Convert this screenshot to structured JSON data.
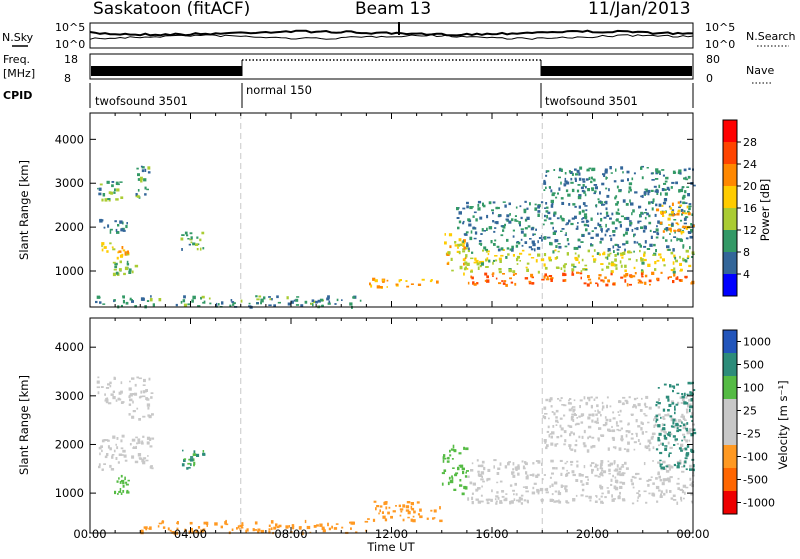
{
  "header": {
    "station": "Saskatoon (fitACF)",
    "beam": "Beam 13",
    "date": "11/Jan/2013"
  },
  "top_panel": {
    "nsky_label": "N.Sky",
    "nsky_ticks": [
      "10^5",
      "10^0"
    ],
    "nsearch_label": "N.Search",
    "nsearch_ticks": [
      "10^5",
      "10^0"
    ],
    "freq_label_1": "Freq.",
    "freq_label_2": "[MHz]",
    "freq_ticks": [
      "18",
      "8"
    ],
    "nave_label": "Nave",
    "nave_ticks": [
      "80",
      "0"
    ],
    "cpid_label": "CPID",
    "cpid_segments": [
      {
        "label": "twofsound 3501",
        "start_hour": 0,
        "end_hour": 6
      },
      {
        "label": "normal 150",
        "start_hour": 6,
        "end_hour": 18
      },
      {
        "label": "twofsound 3501",
        "start_hour": 18,
        "end_hour": 24
      }
    ]
  },
  "chart_data": [
    {
      "type": "heatmap",
      "name": "power",
      "xlabel": "Time UT",
      "ylabel": "Slant Range [km]",
      "xlim": [
        0,
        24
      ],
      "ylim": [
        180,
        4600
      ],
      "yticks": [
        "1000",
        "2000",
        "3000",
        "4000"
      ],
      "colorbar_label": "Power [dB]",
      "colorbar_ticks": [
        "28",
        "24",
        "20",
        "16",
        "12",
        "8",
        "4"
      ],
      "colorbar_colors": [
        "#ff0000",
        "#ff4400",
        "#ff8800",
        "#ffcc00",
        "#aacc33",
        "#339966",
        "#336699",
        "#0000ff"
      ],
      "regions": [
        {
          "x": [
            0.2,
            1.3
          ],
          "y": [
            2600,
            3100
          ],
          "level": 9
        },
        {
          "x": [
            0.3,
            1.5
          ],
          "y": [
            1900,
            2200
          ],
          "level": 6
        },
        {
          "x": [
            0.4,
            1.6
          ],
          "y": [
            1300,
            1700
          ],
          "level": 16
        },
        {
          "x": [
            0.9,
            1.8
          ],
          "y": [
            900,
            1250
          ],
          "level": 10
        },
        {
          "x": [
            1.7,
            2.4
          ],
          "y": [
            2700,
            3400
          ],
          "level": 7
        },
        {
          "x": [
            3.6,
            4.5
          ],
          "y": [
            1500,
            1900
          ],
          "level": 9
        },
        {
          "x": [
            0.2,
            11.0
          ],
          "y": [
            200,
            450
          ],
          "level": 7
        },
        {
          "x": [
            11.0,
            14.0
          ],
          "y": [
            650,
            850
          ],
          "level": 18
        },
        {
          "x": [
            14.0,
            15.0
          ],
          "y": [
            900,
            1900
          ],
          "level": 15
        },
        {
          "x": [
            15.0,
            24.0
          ],
          "y": [
            700,
            1000
          ],
          "level": 22
        },
        {
          "x": [
            15.0,
            24.0
          ],
          "y": [
            1000,
            1500
          ],
          "level": 13
        },
        {
          "x": [
            14.5,
            24.0
          ],
          "y": [
            1500,
            2600
          ],
          "level": 6
        },
        {
          "x": [
            18.0,
            24.0
          ],
          "y": [
            2600,
            3400
          ],
          "level": 6
        },
        {
          "x": [
            22.5,
            24.0
          ],
          "y": [
            1900,
            2600
          ],
          "level": 18
        }
      ],
      "boundary_hours": [
        6,
        18
      ]
    },
    {
      "type": "heatmap",
      "name": "velocity",
      "xlabel": "Time UT",
      "ylabel": "Slant Range [km]",
      "xlim": [
        0,
        24
      ],
      "ylim": [
        180,
        4600
      ],
      "xticks": [
        "00:00",
        "04:00",
        "08:00",
        "12:00",
        "16:00",
        "20:00",
        "00:00"
      ],
      "yticks": [
        "1000",
        "2000",
        "3000",
        "4000"
      ],
      "colorbar_label": "Velocity [m s⁻¹]",
      "colorbar_ticks": [
        "1000",
        "500",
        "100",
        "25",
        "-25",
        "-100",
        "-500",
        "-1000"
      ],
      "colorbar_colors": [
        "#2255bb",
        "#2d8c7a",
        "#55bb44",
        "#c8c8c8",
        "#c8c8c8",
        "#ff9922",
        "#ff6600",
        "#ee0000"
      ],
      "regions": [
        {
          "x": [
            0.2,
            1.3
          ],
          "y": [
            2800,
            3400
          ],
          "value": 0
        },
        {
          "x": [
            0.3,
            2.5
          ],
          "y": [
            1500,
            2200
          ],
          "value": 0
        },
        {
          "x": [
            0.9,
            1.5
          ],
          "y": [
            1000,
            1400
          ],
          "value": 150
        },
        {
          "x": [
            1.5,
            2.5
          ],
          "y": [
            2500,
            3400
          ],
          "value": 0
        },
        {
          "x": [
            3.6,
            4.5
          ],
          "y": [
            1500,
            1900
          ],
          "value": 300
        },
        {
          "x": [
            2.0,
            11.0
          ],
          "y": [
            200,
            450
          ],
          "value": -150
        },
        {
          "x": [
            11.0,
            14.0
          ],
          "y": [
            450,
            850
          ],
          "value": -200
        },
        {
          "x": [
            14.0,
            15.0
          ],
          "y": [
            1000,
            2000
          ],
          "value": 150
        },
        {
          "x": [
            15.0,
            24.0
          ],
          "y": [
            800,
            1700
          ],
          "value": 0
        },
        {
          "x": [
            18.0,
            24.0
          ],
          "y": [
            1900,
            3000
          ],
          "value": 0
        },
        {
          "x": [
            22.5,
            24.0
          ],
          "y": [
            1500,
            3300
          ],
          "value": 600
        }
      ],
      "boundary_hours": [
        6,
        18
      ]
    }
  ]
}
